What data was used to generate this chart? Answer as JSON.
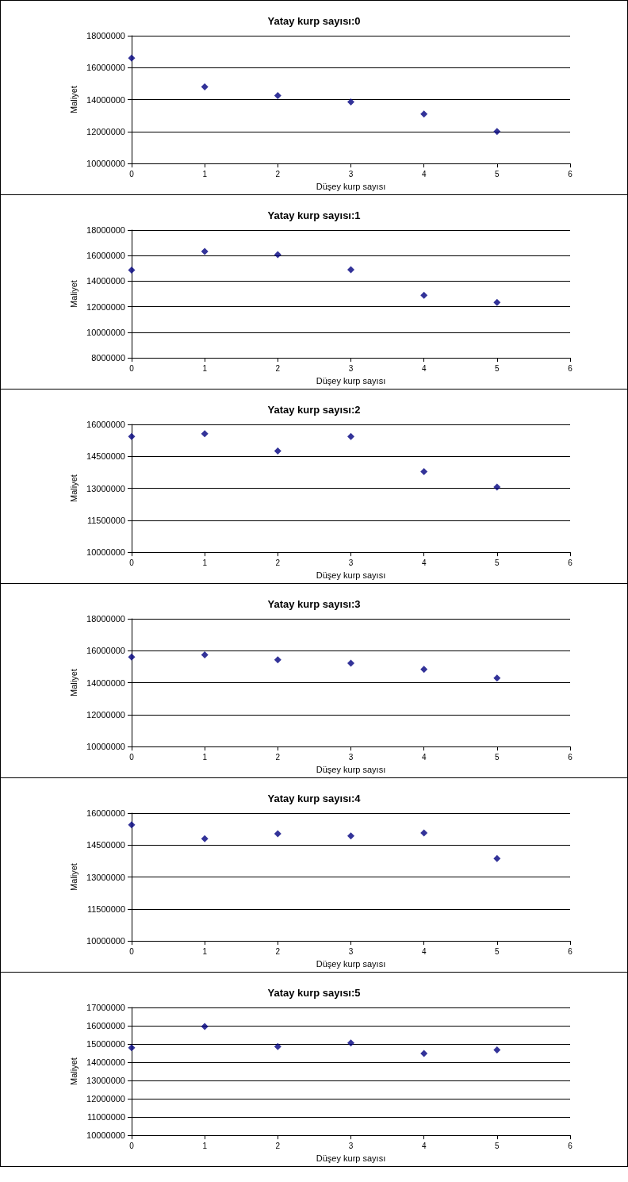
{
  "chart_data": [
    {
      "type": "scatter",
      "title": "Yatay kurp sayısı:0",
      "xlabel": "Düşey kurp sayısı",
      "ylabel": "Maliyet",
      "x": [
        0,
        1,
        2,
        3,
        4,
        5
      ],
      "series": [
        {
          "color": "#000080",
          "values": [
            16600000,
            14800000,
            14250000,
            13850000,
            13100000,
            12000000
          ]
        }
      ],
      "xlim": [
        0,
        6
      ],
      "xticks": [
        0,
        1,
        2,
        3,
        4,
        5,
        6
      ],
      "ylim": [
        10000000,
        18000000
      ],
      "yticks": [
        10000000,
        12000000,
        14000000,
        16000000,
        18000000
      ],
      "grid": "y",
      "marker": "diamond"
    },
    {
      "type": "scatter",
      "title": "Yatay kurp sayısı:1",
      "xlabel": "Düşey kurp sayısı",
      "ylabel": "Maliyet",
      "x": [
        0,
        1,
        2,
        3,
        4,
        5
      ],
      "series": [
        {
          "color": "#000080",
          "values": [
            14870000,
            16330000,
            16070000,
            14900000,
            12900000,
            12330000
          ]
        }
      ],
      "xlim": [
        0,
        6
      ],
      "xticks": [
        0,
        1,
        2,
        3,
        4,
        5,
        6
      ],
      "ylim": [
        8000000,
        18000000
      ],
      "yticks": [
        8000000,
        10000000,
        12000000,
        14000000,
        16000000,
        18000000
      ],
      "grid": "y",
      "marker": "diamond"
    },
    {
      "type": "scatter",
      "title": "Yatay kurp sayısı:2",
      "xlabel": "Düşey kurp sayısı",
      "ylabel": "Maliyet",
      "x": [
        0,
        1,
        2,
        3,
        4,
        5
      ],
      "series": [
        {
          "color": "#000080",
          "values": [
            15430000,
            15560000,
            14750000,
            15430000,
            13780000,
            13060000
          ]
        }
      ],
      "xlim": [
        0,
        6
      ],
      "xticks": [
        0,
        1,
        2,
        3,
        4,
        5,
        6
      ],
      "ylim": [
        10000000,
        16000000
      ],
      "yticks": [
        10000000,
        11500000,
        13000000,
        14500000,
        16000000
      ],
      "grid": "y",
      "marker": "diamond"
    },
    {
      "type": "scatter",
      "title": "Yatay kurp sayısı:3",
      "xlabel": "Düşey kurp sayısı",
      "ylabel": "Maliyet",
      "x": [
        0,
        1,
        2,
        3,
        4,
        5
      ],
      "series": [
        {
          "color": "#000080",
          "values": [
            15600000,
            15740000,
            15430000,
            15220000,
            14830000,
            14290000
          ]
        }
      ],
      "xlim": [
        0,
        6
      ],
      "xticks": [
        0,
        1,
        2,
        3,
        4,
        5,
        6
      ],
      "ylim": [
        10000000,
        18000000
      ],
      "yticks": [
        10000000,
        12000000,
        14000000,
        16000000,
        18000000
      ],
      "grid": "y",
      "marker": "diamond"
    },
    {
      "type": "scatter",
      "title": "Yatay kurp sayısı:4",
      "xlabel": "Düşey kurp sayısı",
      "ylabel": "Maliyet",
      "x": [
        0,
        1,
        2,
        3,
        4,
        5
      ],
      "series": [
        {
          "color": "#000080",
          "values": [
            15450000,
            14800000,
            15030000,
            14930000,
            15070000,
            13870000
          ]
        }
      ],
      "xlim": [
        0,
        6
      ],
      "xticks": [
        0,
        1,
        2,
        3,
        4,
        5,
        6
      ],
      "ylim": [
        10000000,
        16000000
      ],
      "yticks": [
        10000000,
        11500000,
        13000000,
        14500000,
        16000000
      ],
      "grid": "y",
      "marker": "diamond"
    },
    {
      "type": "scatter",
      "title": "Yatay kurp sayısı:5",
      "xlabel": "Düşey kurp sayısı",
      "ylabel": "Maliyet",
      "x": [
        0,
        1,
        2,
        3,
        4,
        5
      ],
      "series": [
        {
          "color": "#000080",
          "values": [
            14790000,
            15960000,
            14860000,
            15060000,
            14480000,
            14670000
          ]
        }
      ],
      "xlim": [
        0,
        6
      ],
      "xticks": [
        0,
        1,
        2,
        3,
        4,
        5,
        6
      ],
      "ylim": [
        10000000,
        17000000
      ],
      "yticks": [
        10000000,
        11000000,
        12000000,
        13000000,
        14000000,
        15000000,
        16000000,
        17000000
      ],
      "grid": "y",
      "marker": "diamond"
    }
  ]
}
